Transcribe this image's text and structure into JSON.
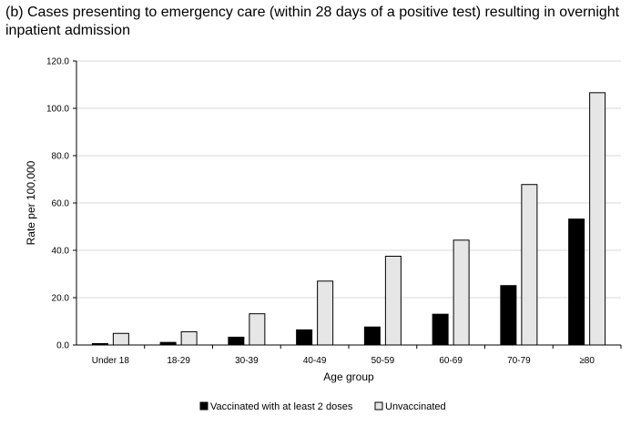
{
  "chart_data": {
    "type": "bar",
    "title": "(b) Cases presenting to emergency care (within 28 days of a positive test) resulting in overnight inpatient admission",
    "xlabel": "Age group",
    "ylabel": "Rate per 100,000",
    "ylim": [
      0,
      120
    ],
    "yticks": [
      "0.0",
      "20.0",
      "40.0",
      "60.0",
      "80.0",
      "100.0",
      "120.0"
    ],
    "grid": true,
    "legend_position": "bottom",
    "categories": [
      "Under 18",
      "18-29",
      "30-39",
      "40-49",
      "50-59",
      "60-69",
      "70-79",
      "≥80"
    ],
    "series": [
      {
        "name": "Vaccinated with at least 2 doses",
        "color": "#000000",
        "values": [
          0.6,
          1.1,
          3.3,
          6.4,
          7.6,
          13.0,
          25.1,
          53.2
        ]
      },
      {
        "name": "Unvaccinated",
        "color": "#e6e6e6",
        "values": [
          4.9,
          5.6,
          13.2,
          27.0,
          37.5,
          44.3,
          67.8,
          106.6
        ]
      }
    ]
  }
}
